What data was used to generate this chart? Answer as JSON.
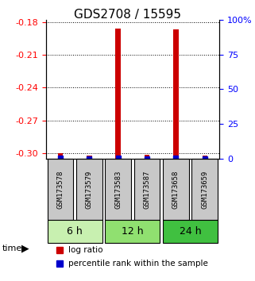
{
  "title": "GDS2708 / 15595",
  "samples": [
    "GSM173578",
    "GSM173579",
    "GSM173583",
    "GSM173587",
    "GSM173658",
    "GSM173659"
  ],
  "log_ratio": [
    -0.3,
    -0.302,
    -0.186,
    -0.301,
    -0.187,
    -0.302
  ],
  "percentile_rank": [
    0.5,
    0.0,
    0.5,
    0.0,
    0.5,
    0.0
  ],
  "ylim_left": [
    -0.305,
    -0.178
  ],
  "ylim_right": [
    0,
    100
  ],
  "yticks_left": [
    -0.3,
    -0.27,
    -0.24,
    -0.21,
    -0.18
  ],
  "yticks_right": [
    0,
    25,
    50,
    75,
    100
  ],
  "ytick_labels_left": [
    "-0.30",
    "-0.27",
    "-0.24",
    "-0.21",
    "-0.18"
  ],
  "ytick_labels_right": [
    "0",
    "25",
    "50",
    "75",
    "100%"
  ],
  "time_groups": [
    {
      "label": "6 h",
      "samples": [
        0,
        1
      ],
      "color": "#c8f0b0"
    },
    {
      "label": "12 h",
      "samples": [
        2,
        3
      ],
      "color": "#90e070"
    },
    {
      "label": "24 h",
      "samples": [
        4,
        5
      ],
      "color": "#40c040"
    }
  ],
  "bar_color": "#cc0000",
  "point_color": "#0000cc",
  "background_plot": "#ffffff",
  "background_sample": "#c8c8c8",
  "legend_items": [
    "log ratio",
    "percentile rank within the sample"
  ]
}
